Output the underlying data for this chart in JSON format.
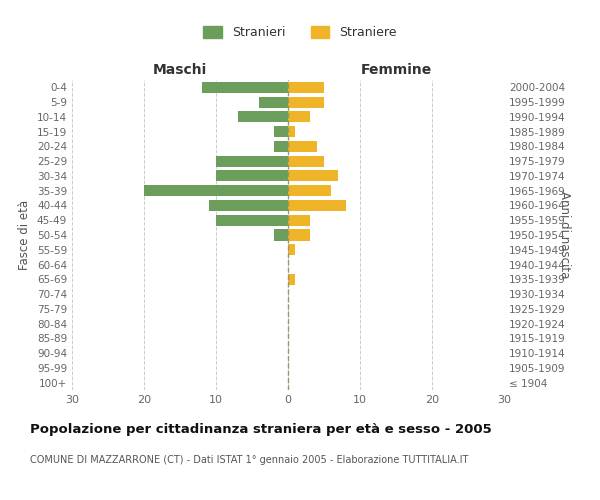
{
  "age_groups": [
    "100+",
    "95-99",
    "90-94",
    "85-89",
    "80-84",
    "75-79",
    "70-74",
    "65-69",
    "60-64",
    "55-59",
    "50-54",
    "45-49",
    "40-44",
    "35-39",
    "30-34",
    "25-29",
    "20-24",
    "15-19",
    "10-14",
    "5-9",
    "0-4"
  ],
  "birth_years": [
    "≤ 1904",
    "1905-1909",
    "1910-1914",
    "1915-1919",
    "1920-1924",
    "1925-1929",
    "1930-1934",
    "1935-1939",
    "1940-1944",
    "1945-1949",
    "1950-1954",
    "1955-1959",
    "1960-1964",
    "1965-1969",
    "1970-1974",
    "1975-1979",
    "1980-1984",
    "1985-1989",
    "1990-1994",
    "1995-1999",
    "2000-2004"
  ],
  "males": [
    0,
    0,
    0,
    0,
    0,
    0,
    0,
    0,
    0,
    0,
    2,
    10,
    11,
    20,
    10,
    10,
    2,
    2,
    7,
    4,
    12
  ],
  "females": [
    0,
    0,
    0,
    0,
    0,
    0,
    0,
    1,
    0,
    1,
    3,
    3,
    8,
    6,
    7,
    5,
    4,
    1,
    3,
    5,
    5
  ],
  "male_color": "#6a9e5a",
  "female_color": "#f0b429",
  "background_color": "#ffffff",
  "grid_color": "#cccccc",
  "title": "Popolazione per cittadinanza straniera per età e sesso - 2005",
  "subtitle": "COMUNE DI MAZZARRONE (CT) - Dati ISTAT 1° gennaio 2005 - Elaborazione TUTTITALIA.IT",
  "ylabel_left": "Fasce di età",
  "ylabel_right": "Anni di nascita",
  "xlabel_left": "Maschi",
  "xlabel_right": "Femmine",
  "legend_male": "Stranieri",
  "legend_female": "Straniere",
  "xlim": 30
}
